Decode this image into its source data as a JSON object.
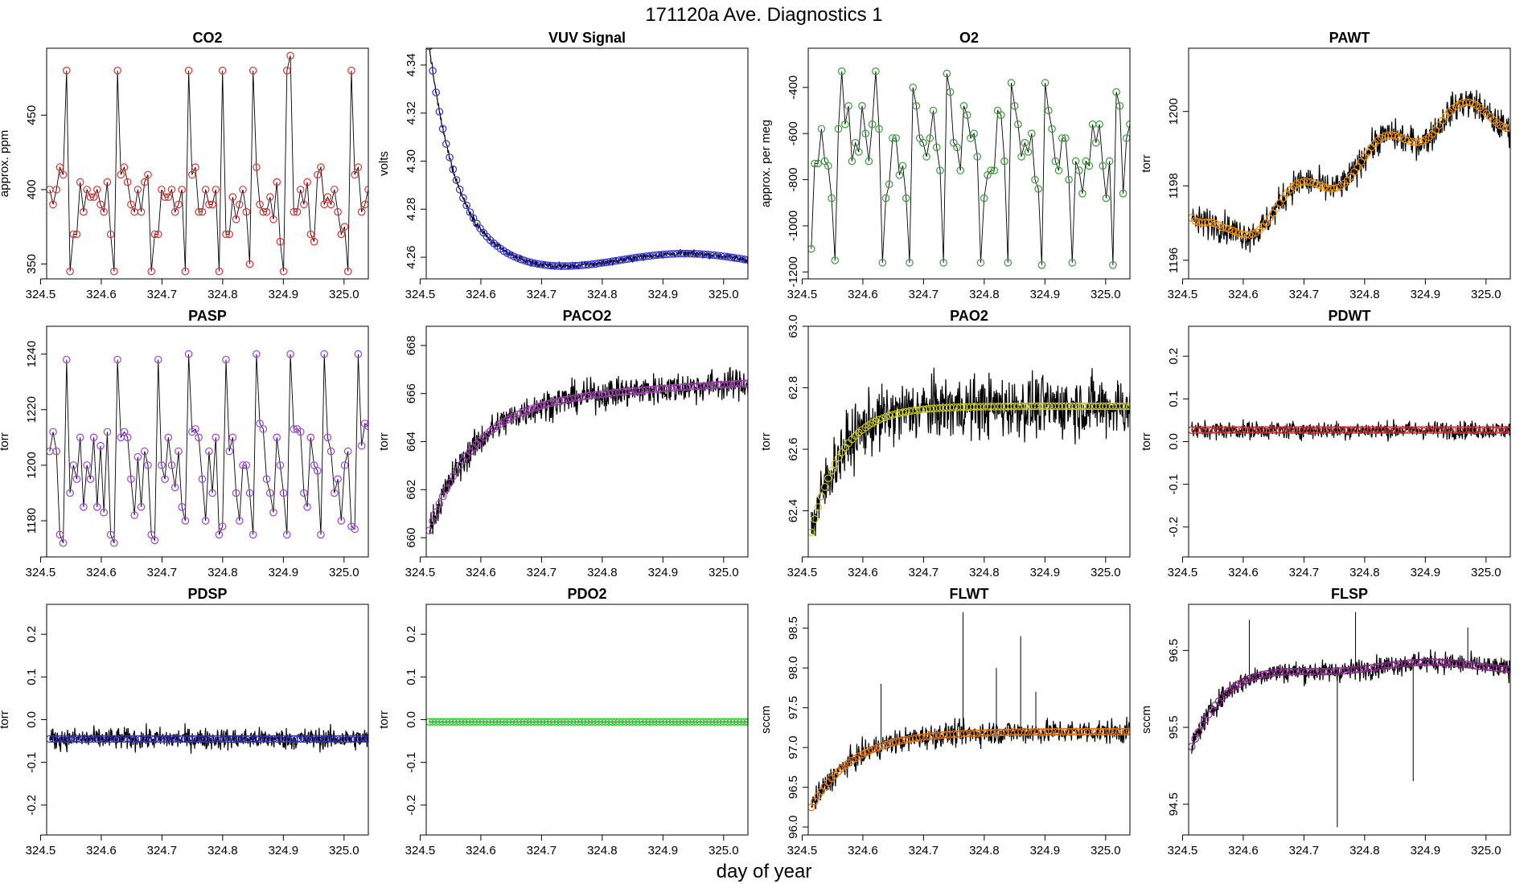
{
  "figure": {
    "title": "171120a   Ave. Diagnostics 1",
    "xlabel": "day of year"
  },
  "chart_data": [
    {
      "type": "line",
      "title": "CO2",
      "ylabel": "approx. ppm",
      "xlim": [
        324.51,
        325.04
      ],
      "ylim": [
        340,
        495
      ],
      "xticks": [
        324.5,
        324.6,
        324.7,
        324.8,
        324.9,
        325.0
      ],
      "xtick_labels": [
        "324.5",
        "324.6",
        "324.7",
        "324.8",
        "324.9",
        "325.0"
      ],
      "yticks": [
        350,
        400,
        450
      ],
      "ytick_labels": [
        "350",
        "400",
        "450"
      ],
      "marker_color": "#e03030",
      "pattern": "co2"
    },
    {
      "type": "line",
      "title": "VUV Signal",
      "ylabel": "volts",
      "xlim": [
        324.51,
        325.04
      ],
      "ylim": [
        4.251,
        4.347
      ],
      "xticks": [
        324.5,
        324.6,
        324.7,
        324.8,
        324.9,
        325.0
      ],
      "xtick_labels": [
        "324.5",
        "324.6",
        "324.7",
        "324.8",
        "324.9",
        "325.0"
      ],
      "yticks": [
        4.26,
        4.28,
        4.3,
        4.32,
        4.34
      ],
      "ytick_labels": [
        "4.26",
        "4.28",
        "4.30",
        "4.32",
        "4.34"
      ],
      "marker_color": "#3030d0",
      "pattern": "vuv"
    },
    {
      "type": "line",
      "title": "O2",
      "ylabel": "approx. per meg",
      "xlim": [
        324.51,
        325.04
      ],
      "ylim": [
        -1230,
        -230
      ],
      "xticks": [
        324.5,
        324.6,
        324.7,
        324.8,
        324.9,
        325.0
      ],
      "xtick_labels": [
        "324.5",
        "324.6",
        "324.7",
        "324.8",
        "324.9",
        "325.0"
      ],
      "yticks": [
        -1200,
        -1000,
        -800,
        -600,
        -400
      ],
      "ytick_labels": [
        "-1200",
        "-1000",
        "-800",
        "-600",
        "-400"
      ],
      "marker_color": "#3a9a3a",
      "pattern": "o2"
    },
    {
      "type": "line",
      "title": "PAWT",
      "ylabel": "torr",
      "xlim": [
        324.51,
        325.04
      ],
      "ylim": [
        1195.5,
        1201.7
      ],
      "xticks": [
        324.5,
        324.6,
        324.7,
        324.8,
        324.9,
        325.0
      ],
      "xtick_labels": [
        "324.5",
        "324.6",
        "324.7",
        "324.8",
        "324.9",
        "325.0"
      ],
      "yticks": [
        1196,
        1198,
        1200
      ],
      "ytick_labels": [
        "1196",
        "1198",
        "1200"
      ],
      "marker_color": "#f0900a",
      "pattern": "pawt"
    },
    {
      "type": "line",
      "title": "PASP",
      "ylabel": "torr",
      "xlim": [
        324.51,
        325.04
      ],
      "ylim": [
        1167,
        1250
      ],
      "xticks": [
        324.5,
        324.6,
        324.7,
        324.8,
        324.9,
        325.0
      ],
      "xtick_labels": [
        "324.5",
        "324.6",
        "324.7",
        "324.8",
        "324.9",
        "325.0"
      ],
      "yticks": [
        1180,
        1200,
        1220,
        1240
      ],
      "ytick_labels": [
        "1180",
        "1200",
        "1220",
        "1240"
      ],
      "marker_color": "#a040e0",
      "pattern": "pasp"
    },
    {
      "type": "line",
      "title": "PACO2",
      "ylabel": "torr",
      "xlim": [
        324.51,
        325.04
      ],
      "ylim": [
        659.2,
        668.8
      ],
      "xticks": [
        324.5,
        324.6,
        324.7,
        324.8,
        324.9,
        325.0
      ],
      "xtick_labels": [
        "324.5",
        "324.6",
        "324.7",
        "324.8",
        "324.9",
        "325.0"
      ],
      "yticks": [
        660,
        662,
        664,
        666,
        668
      ],
      "ytick_labels": [
        "660",
        "662",
        "664",
        "666",
        "668"
      ],
      "marker_color": "#a040b0",
      "pattern": "paco2"
    },
    {
      "type": "line",
      "title": "PAO2",
      "ylabel": "torr",
      "xlim": [
        324.51,
        325.04
      ],
      "ylim": [
        62.25,
        63.0
      ],
      "xticks": [
        324.5,
        324.6,
        324.7,
        324.8,
        324.9,
        325.0
      ],
      "xtick_labels": [
        "324.5",
        "324.6",
        "324.7",
        "324.8",
        "324.9",
        "325.0"
      ],
      "yticks": [
        62.4,
        62.6,
        62.8,
        63.0
      ],
      "ytick_labels": [
        "62.4",
        "62.6",
        "62.8",
        "63.0"
      ],
      "marker_color": "#c8c820",
      "pattern": "pao2"
    },
    {
      "type": "line",
      "title": "PDWT",
      "ylabel": "torr",
      "xlim": [
        324.51,
        325.04
      ],
      "ylim": [
        -0.27,
        0.27
      ],
      "xticks": [
        324.5,
        324.6,
        324.7,
        324.8,
        324.9,
        325.0
      ],
      "xtick_labels": [
        "324.5",
        "324.6",
        "324.7",
        "324.8",
        "324.9",
        "325.0"
      ],
      "yticks": [
        -0.2,
        -0.1,
        0.0,
        0.1,
        0.2
      ],
      "ytick_labels": [
        "-0.2",
        "-0.1",
        "0.0",
        "0.1",
        "0.2"
      ],
      "marker_color": "#d03030",
      "pattern": "pdwt"
    },
    {
      "type": "line",
      "title": "PDSP",
      "ylabel": "torr",
      "xlim": [
        324.51,
        325.04
      ],
      "ylim": [
        -0.27,
        0.27
      ],
      "xticks": [
        324.5,
        324.6,
        324.7,
        324.8,
        324.9,
        325.0
      ],
      "xtick_labels": [
        "324.5",
        "324.6",
        "324.7",
        "324.8",
        "324.9",
        "325.0"
      ],
      "yticks": [
        -0.2,
        -0.1,
        0.0,
        0.1,
        0.2
      ],
      "ytick_labels": [
        "-0.2",
        "-0.1",
        "0.0",
        "0.1",
        "0.2"
      ],
      "marker_color": "#3030d0",
      "pattern": "pdsp"
    },
    {
      "type": "line",
      "title": "PDO2",
      "ylabel": "torr",
      "xlim": [
        324.51,
        325.04
      ],
      "ylim": [
        -0.27,
        0.27
      ],
      "xticks": [
        324.5,
        324.6,
        324.7,
        324.8,
        324.9,
        325.0
      ],
      "xtick_labels": [
        "324.5",
        "324.6",
        "324.7",
        "324.8",
        "324.9",
        "325.0"
      ],
      "yticks": [
        -0.2,
        -0.1,
        0.0,
        0.1,
        0.2
      ],
      "ytick_labels": [
        "-0.2",
        "-0.1",
        "0.0",
        "0.1",
        "0.2"
      ],
      "marker_color": "#20d020",
      "pattern": "pdo2"
    },
    {
      "type": "line",
      "title": "FLWT",
      "ylabel": "sccm",
      "xlim": [
        324.51,
        325.04
      ],
      "ylim": [
        95.9,
        98.8
      ],
      "xticks": [
        324.5,
        324.6,
        324.7,
        324.8,
        324.9,
        325.0
      ],
      "xtick_labels": [
        "324.5",
        "324.6",
        "324.7",
        "324.8",
        "324.9",
        "325.0"
      ],
      "yticks": [
        96.0,
        96.5,
        97.0,
        97.5,
        98.0,
        98.5
      ],
      "ytick_labels": [
        "96.0",
        "96.5",
        "97.0",
        "97.5",
        "98.0",
        "98.5"
      ],
      "marker_color": "#e07010",
      "pattern": "flwt"
    },
    {
      "type": "line",
      "title": "FLSP",
      "ylabel": "sccm",
      "xlim": [
        324.51,
        325.04
      ],
      "ylim": [
        94.1,
        97.1
      ],
      "xticks": [
        324.5,
        324.6,
        324.7,
        324.8,
        324.9,
        325.0
      ],
      "xtick_labels": [
        "324.5",
        "324.6",
        "324.7",
        "324.8",
        "324.9",
        "325.0"
      ],
      "yticks": [
        94.5,
        95.5,
        96.5
      ],
      "ytick_labels": [
        "94.5",
        "95.5",
        "96.5"
      ],
      "marker_color": "#8a2a8a",
      "pattern": "flsp"
    }
  ]
}
